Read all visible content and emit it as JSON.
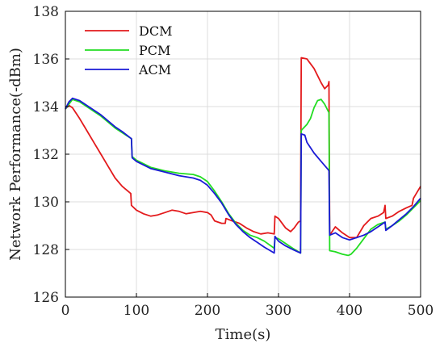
{
  "chart_data": {
    "type": "line",
    "title": "",
    "xlabel": "Time(s)",
    "ylabel": "Network Performance(-dBm)",
    "xlim": [
      0,
      500
    ],
    "ylim": [
      126,
      138
    ],
    "xticks": [
      0,
      100,
      200,
      300,
      400,
      500
    ],
    "yticks": [
      126,
      128,
      130,
      132,
      134,
      136,
      138
    ],
    "grid": true,
    "legend_position": "top-left",
    "series": [
      {
        "name": "DCM",
        "color": "#e31a1c",
        "points": [
          [
            0,
            133.9
          ],
          [
            5,
            134.05
          ],
          [
            10,
            133.95
          ],
          [
            20,
            133.5
          ],
          [
            30,
            133.0
          ],
          [
            40,
            132.5
          ],
          [
            50,
            132.0
          ],
          [
            60,
            131.5
          ],
          [
            70,
            131.0
          ],
          [
            80,
            130.65
          ],
          [
            92,
            130.35
          ],
          [
            93,
            129.85
          ],
          [
            100,
            129.65
          ],
          [
            110,
            129.5
          ],
          [
            120,
            129.4
          ],
          [
            130,
            129.45
          ],
          [
            140,
            129.55
          ],
          [
            150,
            129.65
          ],
          [
            160,
            129.6
          ],
          [
            170,
            129.5
          ],
          [
            180,
            129.55
          ],
          [
            190,
            129.6
          ],
          [
            200,
            129.55
          ],
          [
            205,
            129.45
          ],
          [
            210,
            129.2
          ],
          [
            220,
            129.1
          ],
          [
            225,
            129.1
          ],
          [
            226,
            129.3
          ],
          [
            235,
            129.2
          ],
          [
            245,
            129.1
          ],
          [
            255,
            128.9
          ],
          [
            265,
            128.75
          ],
          [
            275,
            128.65
          ],
          [
            285,
            128.7
          ],
          [
            294,
            128.65
          ],
          [
            295,
            129.4
          ],
          [
            300,
            129.3
          ],
          [
            310,
            128.9
          ],
          [
            317,
            128.75
          ],
          [
            322,
            128.9
          ],
          [
            328,
            129.15
          ],
          [
            331,
            129.2
          ],
          [
            332,
            136.05
          ],
          [
            340,
            136.0
          ],
          [
            350,
            135.6
          ],
          [
            360,
            135.0
          ],
          [
            365,
            134.75
          ],
          [
            370,
            134.9
          ],
          [
            371,
            135.05
          ],
          [
            372,
            128.6
          ],
          [
            380,
            128.95
          ],
          [
            390,
            128.7
          ],
          [
            400,
            128.5
          ],
          [
            410,
            128.5
          ],
          [
            420,
            129.0
          ],
          [
            430,
            129.3
          ],
          [
            440,
            129.4
          ],
          [
            448,
            129.55
          ],
          [
            450,
            129.85
          ],
          [
            451,
            129.3
          ],
          [
            460,
            129.4
          ],
          [
            470,
            129.6
          ],
          [
            480,
            129.75
          ],
          [
            488,
            129.85
          ],
          [
            490,
            130.15
          ],
          [
            500,
            130.65
          ]
        ]
      },
      {
        "name": "PCM",
        "color": "#22dd22",
        "points": [
          [
            0,
            133.9
          ],
          [
            10,
            134.3
          ],
          [
            20,
            134.2
          ],
          [
            30,
            134.0
          ],
          [
            40,
            133.8
          ],
          [
            50,
            133.6
          ],
          [
            60,
            133.35
          ],
          [
            70,
            133.1
          ],
          [
            80,
            132.9
          ],
          [
            93,
            132.65
          ],
          [
            94,
            131.9
          ],
          [
            100,
            131.75
          ],
          [
            110,
            131.6
          ],
          [
            120,
            131.45
          ],
          [
            140,
            131.3
          ],
          [
            160,
            131.2
          ],
          [
            180,
            131.15
          ],
          [
            190,
            131.05
          ],
          [
            200,
            130.85
          ],
          [
            210,
            130.45
          ],
          [
            220,
            130.0
          ],
          [
            230,
            129.5
          ],
          [
            240,
            129.1
          ],
          [
            250,
            128.8
          ],
          [
            260,
            128.6
          ],
          [
            270,
            128.5
          ],
          [
            280,
            128.35
          ],
          [
            294,
            128.05
          ],
          [
            295,
            128.5
          ],
          [
            300,
            128.45
          ],
          [
            310,
            128.25
          ],
          [
            320,
            128.05
          ],
          [
            331,
            127.85
          ],
          [
            332,
            133.0
          ],
          [
            340,
            133.25
          ],
          [
            345,
            133.5
          ],
          [
            350,
            133.95
          ],
          [
            355,
            134.25
          ],
          [
            360,
            134.3
          ],
          [
            365,
            134.1
          ],
          [
            370,
            133.8
          ],
          [
            371,
            133.75
          ],
          [
            372,
            127.95
          ],
          [
            380,
            127.9
          ],
          [
            390,
            127.8
          ],
          [
            398,
            127.75
          ],
          [
            402,
            127.8
          ],
          [
            410,
            128.05
          ],
          [
            420,
            128.45
          ],
          [
            430,
            128.85
          ],
          [
            440,
            129.05
          ],
          [
            450,
            129.15
          ],
          [
            451,
            128.85
          ],
          [
            460,
            129.0
          ],
          [
            470,
            129.2
          ],
          [
            480,
            129.45
          ],
          [
            490,
            129.75
          ],
          [
            500,
            130.05
          ]
        ]
      },
      {
        "name": "ACM",
        "color": "#1a1ad6",
        "points": [
          [
            0,
            133.9
          ],
          [
            5,
            134.2
          ],
          [
            10,
            134.35
          ],
          [
            20,
            134.25
          ],
          [
            30,
            134.05
          ],
          [
            40,
            133.85
          ],
          [
            50,
            133.65
          ],
          [
            60,
            133.4
          ],
          [
            70,
            133.15
          ],
          [
            80,
            132.95
          ],
          [
            93,
            132.65
          ],
          [
            94,
            131.85
          ],
          [
            100,
            131.7
          ],
          [
            110,
            131.55
          ],
          [
            120,
            131.4
          ],
          [
            140,
            131.25
          ],
          [
            160,
            131.1
          ],
          [
            180,
            131.0
          ],
          [
            190,
            130.9
          ],
          [
            200,
            130.7
          ],
          [
            210,
            130.35
          ],
          [
            220,
            129.95
          ],
          [
            230,
            129.45
          ],
          [
            240,
            129.05
          ],
          [
            250,
            128.75
          ],
          [
            260,
            128.5
          ],
          [
            270,
            128.3
          ],
          [
            280,
            128.1
          ],
          [
            294,
            127.85
          ],
          [
            295,
            128.55
          ],
          [
            300,
            128.35
          ],
          [
            310,
            128.15
          ],
          [
            320,
            128.0
          ],
          [
            331,
            127.85
          ],
          [
            332,
            132.85
          ],
          [
            337,
            132.8
          ],
          [
            340,
            132.5
          ],
          [
            350,
            132.05
          ],
          [
            360,
            131.7
          ],
          [
            370,
            131.35
          ],
          [
            371,
            131.3
          ],
          [
            372,
            128.6
          ],
          [
            380,
            128.7
          ],
          [
            390,
            128.5
          ],
          [
            400,
            128.4
          ],
          [
            410,
            128.5
          ],
          [
            420,
            128.6
          ],
          [
            430,
            128.75
          ],
          [
            440,
            128.95
          ],
          [
            450,
            129.15
          ],
          [
            451,
            128.8
          ],
          [
            460,
            129.0
          ],
          [
            470,
            129.25
          ],
          [
            480,
            129.5
          ],
          [
            490,
            129.8
          ],
          [
            500,
            130.15
          ]
        ]
      }
    ]
  }
}
